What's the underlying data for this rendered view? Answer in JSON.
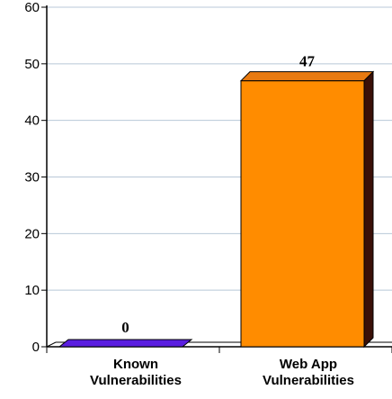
{
  "chart_data": {
    "type": "bar",
    "categories": [
      [
        "Known",
        "Vulnerabilities"
      ],
      [
        "Web App",
        "Vulnerabilities"
      ]
    ],
    "values": [
      0,
      47
    ],
    "data_labels": [
      "0",
      "47"
    ],
    "ylim": [
      0,
      60
    ],
    "yticks": [
      0,
      10,
      20,
      30,
      40,
      50,
      60
    ],
    "grid": true,
    "bar_3d": true,
    "colors": [
      {
        "front": "#5a1ee0",
        "top": "#7b4af0",
        "side": "#2a0a80"
      },
      {
        "front": "#ff8c00",
        "top": "#e87a10",
        "side": "#3a1008"
      }
    ],
    "gridline_color": "#b8c8d8"
  }
}
